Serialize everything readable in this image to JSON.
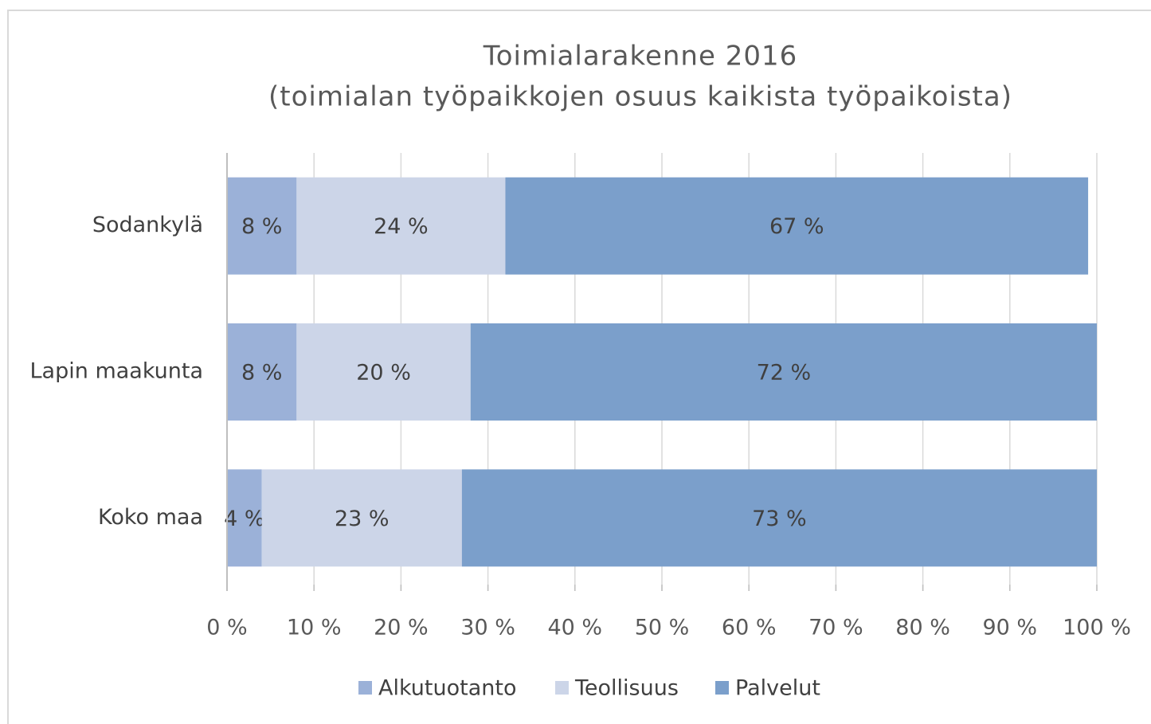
{
  "chart_data": {
    "type": "bar",
    "orientation": "horizontal",
    "stacked": true,
    "title": "Toimialarakenne 2016",
    "subtitle": "(toimialan työpaikkojen osuus kaikista työpaikoista)",
    "categories": [
      "Sodankylä",
      "Lapin maakunta",
      "Koko maa"
    ],
    "series": [
      {
        "name": "Alkutuotanto",
        "color": "#9bb1d8",
        "values": [
          8,
          8,
          4
        ],
        "value_labels": [
          "8 %",
          "8 %",
          "4 %"
        ]
      },
      {
        "name": "Teollisuus",
        "color": "#ccd5e8",
        "values": [
          24,
          20,
          23
        ],
        "value_labels": [
          "24 %",
          "20 %",
          "23 %"
        ]
      },
      {
        "name": "Palvelut",
        "color": "#7b9fcb",
        "values": [
          67,
          72,
          73
        ],
        "value_labels": [
          "67 %",
          "72 %",
          "73 %"
        ]
      }
    ],
    "xlim": [
      0,
      100
    ],
    "xticks": [
      {
        "value": 0,
        "label": "0 %"
      },
      {
        "value": 10,
        "label": "10 %"
      },
      {
        "value": 20,
        "label": "20 %"
      },
      {
        "value": 30,
        "label": "30 %"
      },
      {
        "value": 40,
        "label": "40 %"
      },
      {
        "value": 50,
        "label": "50 %"
      },
      {
        "value": 60,
        "label": "60 %"
      },
      {
        "value": 70,
        "label": "70 %"
      },
      {
        "value": 80,
        "label": "80 %"
      },
      {
        "value": 90,
        "label": "90 %"
      },
      {
        "value": 100,
        "label": "100 %"
      }
    ],
    "grid": true,
    "legend": "bottom"
  }
}
